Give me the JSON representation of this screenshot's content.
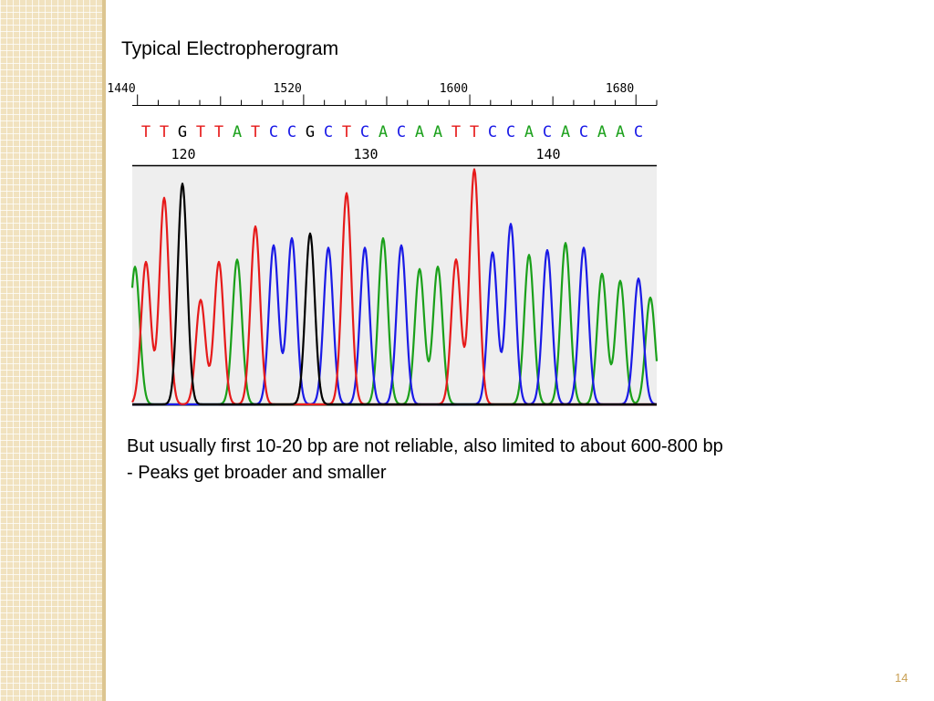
{
  "slide": {
    "title": "Typical Electropherogram",
    "caption_line1": "But usually first 10-20 bp are not reliable, also limited to about 600-800 bp",
    "caption_line2": "- Peaks get broader and smaller",
    "page_number": "14"
  },
  "chart_data": {
    "type": "line",
    "title": "",
    "xlabel": "",
    "ylabel": "",
    "scan_ticks": [
      "1440",
      "1520",
      "1600",
      "1680"
    ],
    "scan_tick_values": [
      1440,
      1520,
      1600,
      1680
    ],
    "scan_range": [
      1437.5,
      1690
    ],
    "base_calls": "TTGTTATCCGCTCACAATTCCACACAAC",
    "base_number_labels": [
      "120",
      "130",
      "140"
    ],
    "base_number_values": [
      120,
      130,
      140
    ],
    "first_base_number": 118,
    "colors": {
      "A": "#1aa01a",
      "C": "#1a1ae6",
      "G": "#000000",
      "T": "#e61a1a"
    },
    "peak_heights": [
      0.6,
      0.87,
      0.93,
      0.44,
      0.6,
      0.61,
      0.75,
      0.67,
      0.7,
      0.72,
      0.66,
      0.89,
      0.66,
      0.7,
      0.67,
      0.57,
      0.58,
      0.61,
      0.99,
      0.64,
      0.76,
      0.63,
      0.65,
      0.68,
      0.66,
      0.55,
      0.52,
      0.53
    ],
    "ylim": [
      0,
      1
    ]
  }
}
